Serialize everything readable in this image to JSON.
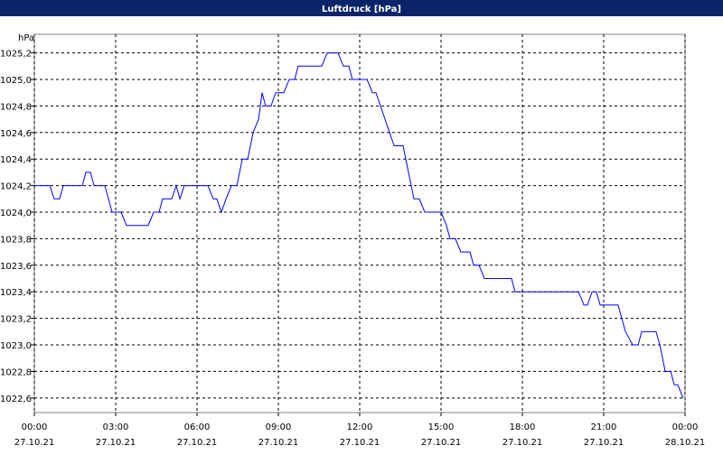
{
  "chart_data": {
    "type": "line",
    "title": "Luftdruck [hPa]",
    "y_label": "hPa",
    "xlim": [
      0,
      24
    ],
    "xticks": [
      {
        "value": 0,
        "label": "00:00"
      },
      {
        "value": 3,
        "label": "03:00"
      },
      {
        "value": 6,
        "label": "06:00"
      },
      {
        "value": 9,
        "label": "09:00"
      },
      {
        "value": 12,
        "label": "12:00"
      },
      {
        "value": 15,
        "label": "15:00"
      },
      {
        "value": 18,
        "label": "18:00"
      },
      {
        "value": 21,
        "label": "21:00"
      },
      {
        "value": 24,
        "label": "00:00"
      }
    ],
    "xtick_dates": [
      "27.10.21",
      "27.10.21",
      "27.10.21",
      "27.10.21",
      "27.10.21",
      "27.10.21",
      "27.10.21",
      "27.10.21",
      "28.10.21"
    ],
    "ylim": [
      1022.49,
      1025.34
    ],
    "yticks": [
      {
        "value": 1022.6,
        "label": "1022,6"
      },
      {
        "value": 1022.8,
        "label": "1022,8"
      },
      {
        "value": 1023,
        "label": "1023,0"
      },
      {
        "value": 1023.2,
        "label": "1023,2"
      },
      {
        "value": 1023.4,
        "label": "1023,4"
      },
      {
        "value": 1023.6,
        "label": "1023,6"
      },
      {
        "value": 1023.8,
        "label": "1023,8"
      },
      {
        "value": 1024,
        "label": "1024,0"
      },
      {
        "value": 1024.2,
        "label": "1024,2"
      },
      {
        "value": 1024.4,
        "label": "1024,4"
      },
      {
        "value": 1024.6,
        "label": "1024,6"
      },
      {
        "value": 1024.8,
        "label": "1024,8"
      },
      {
        "value": 1025,
        "label": "1025,0"
      },
      {
        "value": 1025.2,
        "label": "1025,2"
      }
    ],
    "grid": true,
    "x": [
      0,
      0.57,
      0.73,
      0.93,
      1.07,
      1.77,
      1.9,
      2.07,
      2.2,
      2.6,
      2.87,
      3.2,
      3.4,
      4.2,
      4.4,
      4.6,
      4.73,
      5.07,
      5.23,
      5.37,
      5.53,
      6.4,
      6.6,
      6.73,
      6.9,
      7.07,
      7.27,
      7.47,
      7.67,
      7.87,
      8.07,
      8.27,
      8.4,
      8.53,
      8.73,
      8.9,
      9.2,
      9.4,
      9.6,
      9.73,
      10.6,
      10.8,
      11.2,
      11.4,
      11.6,
      11.73,
      12.27,
      12.47,
      12.6,
      13.27,
      13.6,
      13.8,
      14.0,
      14.2,
      14.4,
      15.0,
      15.2,
      15.33,
      15.53,
      15.73,
      16.07,
      16.2,
      16.4,
      16.6,
      17.6,
      17.73,
      20.07,
      20.27,
      20.4,
      20.57,
      20.73,
      20.87,
      21.53,
      21.8,
      22.07,
      22.27,
      22.4,
      22.93,
      23.07,
      23.27,
      23.47,
      23.6,
      23.73,
      23.93
    ],
    "series": [
      {
        "name": "Luftdruck",
        "color": "#0000ff",
        "values": [
          1024.2,
          1024.2,
          1024.1,
          1024.1,
          1024.2,
          1024.2,
          1024.3,
          1024.3,
          1024.2,
          1024.2,
          1024.0,
          1024.0,
          1023.9,
          1023.9,
          1024.0,
          1024.0,
          1024.1,
          1024.1,
          1024.2,
          1024.1,
          1024.2,
          1024.2,
          1024.1,
          1024.1,
          1024.0,
          1024.1,
          1024.2,
          1024.2,
          1024.4,
          1024.4,
          1024.6,
          1024.7,
          1024.9,
          1024.8,
          1024.8,
          1024.9,
          1024.9,
          1025.0,
          1025.0,
          1025.1,
          1025.1,
          1025.2,
          1025.2,
          1025.1,
          1025.1,
          1025.0,
          1025.0,
          1024.9,
          1024.9,
          1024.5,
          1024.5,
          1024.3,
          1024.1,
          1024.1,
          1024.0,
          1024.0,
          1023.9,
          1023.8,
          1023.8,
          1023.7,
          1023.7,
          1023.6,
          1023.6,
          1023.5,
          1023.5,
          1023.4,
          1023.4,
          1023.3,
          1023.3,
          1023.4,
          1023.4,
          1023.3,
          1023.3,
          1023.1,
          1023.0,
          1023.0,
          1023.1,
          1023.1,
          1023.0,
          1022.8,
          1022.8,
          1022.7,
          1022.7,
          1022.6
        ]
      }
    ]
  }
}
